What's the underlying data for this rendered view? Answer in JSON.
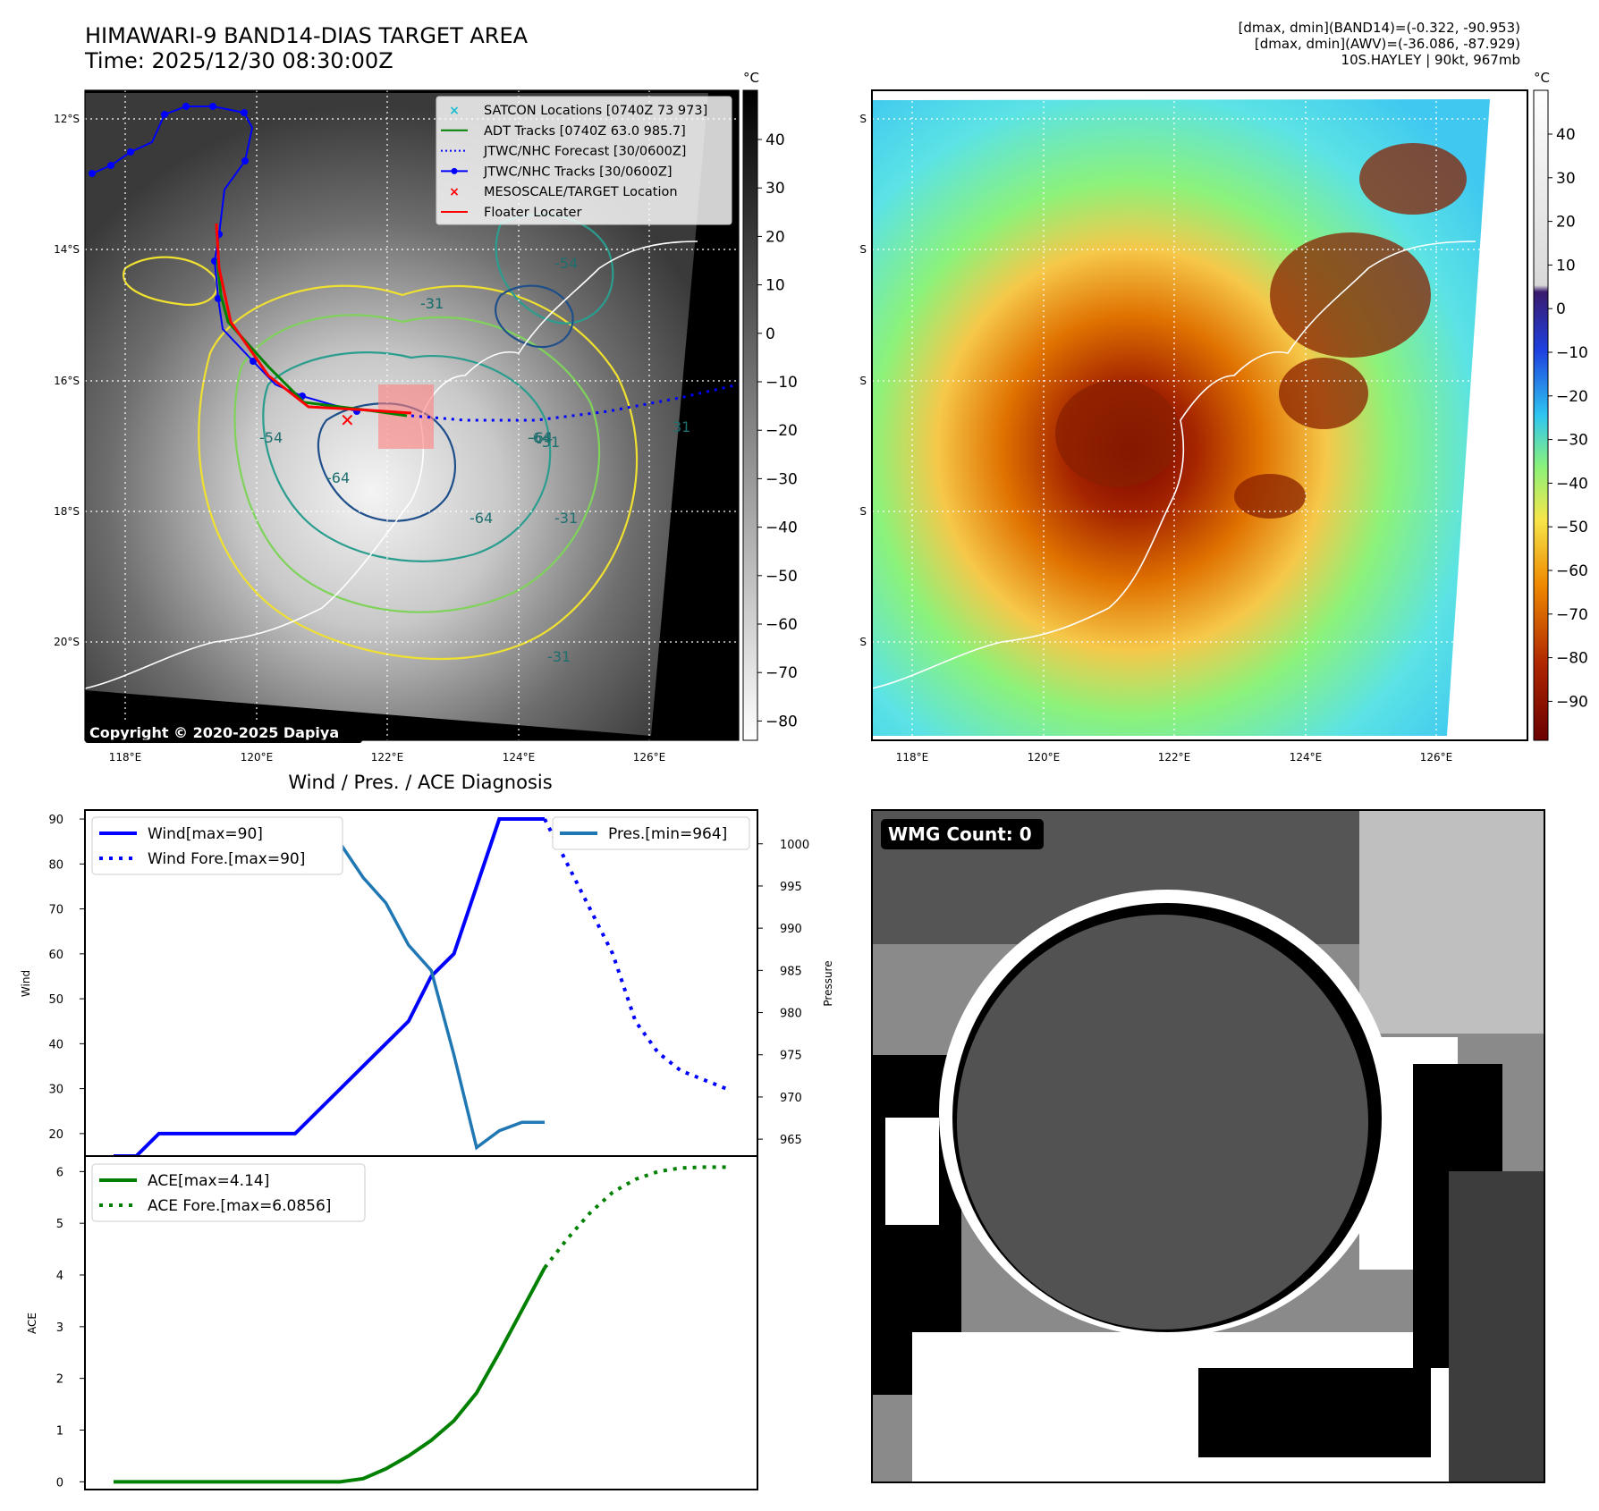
{
  "header": {
    "title_line1": "HIMAWARI-9 BAND14-DIAS TARGET AREA",
    "title_line2": "Time: 2025/12/30 08:30:00Z",
    "stats": [
      "[dmax, dmin](BAND14)=(-0.322, -90.953)",
      "[dmax, dmin](AWV)=(-36.086, -87.929)",
      "10S.HAYLEY | 90kt, 967mb"
    ]
  },
  "map_axes": {
    "lat_labels": [
      "12°S",
      "14°S",
      "16°S",
      "18°S",
      "20°S"
    ],
    "lon_labels": [
      "118°E",
      "120°E",
      "122°E",
      "124°E",
      "126°E"
    ]
  },
  "ir_map": {
    "legend": [
      {
        "label": "SATCON Locations [0740Z 73 973]",
        "color": "#17becf",
        "marker": "x"
      },
      {
        "label": "ADT Tracks [0740Z 63.0 985.7]",
        "color": "#008000",
        "marker": "line"
      },
      {
        "label": "JTWC/NHC Forecast [30/0600Z]",
        "color": "#0000ff",
        "marker": "dots"
      },
      {
        "label": "JTWC/NHC Tracks [30/0600Z]",
        "color": "#0000ff",
        "marker": "line-dot"
      },
      {
        "label": "MESOSCALE/TARGET Location",
        "color": "#ff0000",
        "marker": "x"
      },
      {
        "label": "Floater Locater",
        "color": "#ff0000",
        "marker": "line"
      }
    ],
    "copyright": "Copyright © 2020-2025 Dapiya",
    "contour_labels": [
      "-31",
      "-54",
      "-64",
      "-31",
      "-64",
      "-64",
      "-54",
      "-31",
      "-31",
      "-64",
      "31",
      "-31"
    ]
  },
  "colorbar_ir": {
    "unit": "°C",
    "ticks": [
      "40",
      "30",
      "20",
      "10",
      "0",
      "−10",
      "−20",
      "−30",
      "−40",
      "−50",
      "−60",
      "−70",
      "−80"
    ]
  },
  "colorbar_awv": {
    "unit": "°C",
    "ticks": [
      "40",
      "30",
      "20",
      "10",
      "0",
      "−10",
      "−20",
      "−30",
      "−40",
      "−50",
      "−60",
      "−70",
      "−80",
      "−90"
    ]
  },
  "wmg": {
    "label": "WMG Count: 0"
  },
  "chart_data": [
    {
      "type": "line",
      "title": "Wind / Pres. / ACE Diagnosis",
      "ylabel": "Wind",
      "y2label": "Pressure",
      "ylim": [
        15,
        92
      ],
      "y2lim": [
        963,
        1004
      ],
      "yticks": [
        20,
        30,
        40,
        50,
        60,
        70,
        80,
        90
      ],
      "y2ticks": [
        965,
        970,
        975,
        980,
        985,
        990,
        995,
        1000
      ],
      "x": [
        0,
        1,
        2,
        3,
        4,
        5,
        6,
        7,
        8,
        9,
        10,
        11,
        12,
        13,
        14,
        15,
        16,
        17,
        18,
        19,
        20,
        21,
        22,
        23,
        24,
        25,
        26,
        27
      ],
      "series": [
        {
          "name": "Wind[max=90]",
          "axis": "left",
          "style": "solid",
          "color": "#0000ff",
          "x": [
            0,
            1,
            2,
            3,
            4,
            5,
            6,
            7,
            8,
            9,
            10,
            11,
            12,
            13,
            14,
            15,
            16,
            17,
            18,
            19
          ],
          "values": [
            15,
            15,
            20,
            20,
            20,
            20,
            20,
            20,
            20,
            25,
            30,
            35,
            40,
            45,
            55,
            60,
            75,
            90,
            90,
            90
          ]
        },
        {
          "name": "Wind Fore.[max=90]",
          "axis": "left",
          "style": "dotted",
          "color": "#0000ff",
          "x": [
            19,
            20,
            21,
            22,
            23,
            24,
            25,
            26,
            27
          ],
          "values": [
            90,
            80,
            70,
            60,
            45,
            38,
            34,
            32,
            30
          ]
        },
        {
          "name": "Pres.[min=964]",
          "axis": "right",
          "style": "solid",
          "color": "#1f77b4",
          "x": [
            0,
            1,
            2,
            3,
            4,
            5,
            6,
            7,
            8,
            9,
            10,
            11,
            12,
            13,
            14,
            15,
            16,
            17,
            18,
            19
          ],
          "values": [
            1003,
            1003,
            1003,
            1003,
            1003,
            1003,
            1003,
            1003,
            1003,
            1002,
            1000,
            996,
            993,
            988,
            985,
            975,
            964,
            966,
            967,
            967
          ]
        }
      ]
    },
    {
      "type": "line",
      "ylabel": "ACE",
      "ylim": [
        -0.15,
        6.3
      ],
      "yticks": [
        0,
        1,
        2,
        3,
        4,
        5,
        6
      ],
      "x": [
        0,
        1,
        2,
        3,
        4,
        5,
        6,
        7,
        8,
        9,
        10,
        11,
        12,
        13,
        14,
        15,
        16,
        17,
        18,
        19,
        20,
        21,
        22,
        23,
        24,
        25,
        26,
        27
      ],
      "series": [
        {
          "name": "ACE[max=4.14]",
          "style": "solid",
          "color": "#008000",
          "x": [
            0,
            1,
            2,
            3,
            4,
            5,
            6,
            7,
            8,
            9,
            10,
            11,
            12,
            13,
            14,
            15,
            16,
            17,
            18,
            19
          ],
          "values": [
            0,
            0,
            0,
            0,
            0,
            0,
            0,
            0,
            0,
            0,
            0,
            0.06,
            0.25,
            0.5,
            0.8,
            1.18,
            1.72,
            2.5,
            3.32,
            4.14
          ]
        },
        {
          "name": "ACE Fore.[max=6.0856]",
          "style": "dotted",
          "color": "#008000",
          "x": [
            19,
            20,
            21,
            22,
            23,
            24,
            25,
            26,
            27
          ],
          "values": [
            4.14,
            4.7,
            5.2,
            5.6,
            5.85,
            6.0,
            6.07,
            6.0856,
            6.0856
          ]
        }
      ]
    }
  ]
}
